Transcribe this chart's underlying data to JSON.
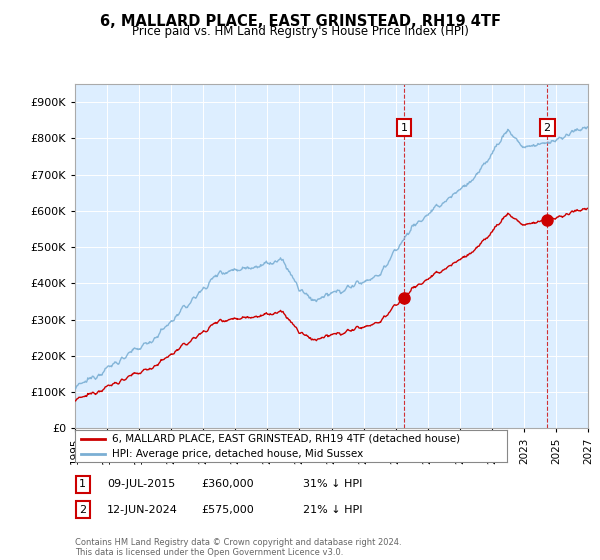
{
  "title": "6, MALLARD PLACE, EAST GRINSTEAD, RH19 4TF",
  "subtitle": "Price paid vs. HM Land Registry's House Price Index (HPI)",
  "hpi_label": "HPI: Average price, detached house, Mid Sussex",
  "property_label": "6, MALLARD PLACE, EAST GRINSTEAD, RH19 4TF (detached house)",
  "hpi_color": "#7bafd4",
  "property_color": "#cc0000",
  "sale1_date": "09-JUL-2015",
  "sale1_price": 360000,
  "sale1_label": "31% ↓ HPI",
  "sale1_year": 2015.52,
  "sale2_date": "12-JUN-2024",
  "sale2_price": 575000,
  "sale2_label": "21% ↓ HPI",
  "sale2_year": 2024.45,
  "ylim": [
    0,
    950000
  ],
  "yticks": [
    0,
    100000,
    200000,
    300000,
    400000,
    500000,
    600000,
    700000,
    800000,
    900000
  ],
  "xlim_start": 1995.0,
  "xlim_end": 2027.0,
  "background_color": "#ffffff",
  "plot_bg_color": "#ddeeff",
  "footer": "Contains HM Land Registry data © Crown copyright and database right 2024.\nThis data is licensed under the Open Government Licence v3.0."
}
